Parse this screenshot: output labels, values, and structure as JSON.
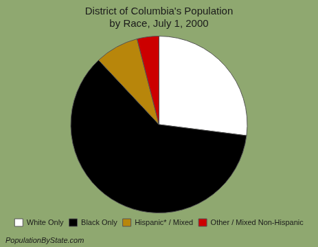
{
  "chart_data": {
    "type": "pie",
    "title": "District of Columbia's Population\nby Race, July 1, 2000",
    "categories": [
      "White Only",
      "Black Only",
      "Hispanic* / Mixed",
      "Other / Mixed Non-Hispanic"
    ],
    "values": [
      27.0,
      61.0,
      8.0,
      4.0
    ],
    "colors": [
      "#ffffff",
      "#000000",
      "#b8860b",
      "#cc0000"
    ],
    "legend": "bottom",
    "annotation": "PopulationByState.com"
  }
}
